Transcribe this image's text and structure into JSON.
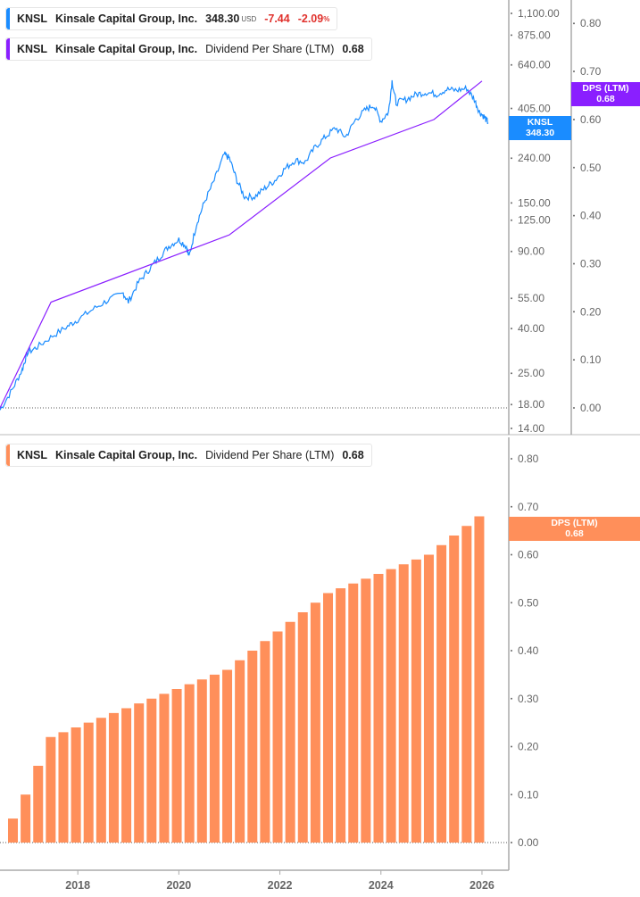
{
  "legend_price": {
    "ticker": "KNSL",
    "company": "Kinsale Capital Group, Inc.",
    "price": "348.30",
    "currency": "USD",
    "change": "-7.44",
    "change_pct": "-2.09",
    "pct_sign": "%"
  },
  "legend_dps_top": {
    "ticker": "KNSL",
    "company": "Kinsale Capital Group, Inc.",
    "metric": "Dividend Per Share (LTM)",
    "value": "0.68"
  },
  "legend_dps_bottom": {
    "ticker": "KNSL",
    "company": "Kinsale Capital Group, Inc.",
    "metric": "Dividend Per Share (LTM)",
    "value": "0.68"
  },
  "tags": {
    "price_name": "KNSL",
    "price_value": "348.30",
    "dps_name": "DPS (LTM)",
    "dps_value": "0.68",
    "bar_name": "DPS (LTM)",
    "bar_value": "0.68"
  },
  "colors": {
    "price": "#1a8cff",
    "dps_line": "#8a1fff",
    "bars": "#ff8f5a",
    "neg": "#e0322d"
  },
  "chart_data": [
    {
      "type": "line",
      "scale": "log",
      "yticks": [
        "1,100.00",
        "875.00",
        "640.00",
        "405.00",
        "240.00",
        "150.00",
        "125.00",
        "90.00",
        "55.00",
        "40.00",
        "25.00",
        "18.00",
        "14.00"
      ],
      "ytick_values": [
        1100,
        875,
        640,
        405,
        240,
        150,
        125,
        90,
        55,
        40,
        25,
        18,
        14
      ],
      "y2ticks": [
        "0.80",
        "0.70",
        "0.60",
        "0.50",
        "0.40",
        "0.30",
        "0.20",
        "0.10",
        "0.00"
      ],
      "y2tick_values": [
        0.8,
        0.7,
        0.6,
        0.5,
        0.4,
        0.3,
        0.2,
        0.1,
        0
      ],
      "series": [
        {
          "name": "KNSL",
          "axis": "left",
          "x": [
            2016.46,
            2016.7,
            2016.9,
            2017.0,
            2017.2,
            2017.5,
            2017.8,
            2018.0,
            2018.3,
            2018.6,
            2018.9,
            2019.0,
            2019.2,
            2019.4,
            2019.6,
            2019.8,
            2020.0,
            2020.15,
            2020.2,
            2020.35,
            2020.5,
            2020.7,
            2020.9,
            2021.0,
            2021.15,
            2021.3,
            2021.5,
            2021.7,
            2021.9,
            2022.1,
            2022.3,
            2022.5,
            2022.7,
            2022.9,
            2023.1,
            2023.3,
            2023.5,
            2023.7,
            2023.85,
            2024.0,
            2024.15,
            2024.22,
            2024.3,
            2024.5,
            2024.7,
            2024.9,
            2025.1,
            2025.3,
            2025.5,
            2025.7,
            2025.85,
            2025.95,
            2026.05,
            2026.12
          ],
          "y": [
            17,
            21,
            26,
            31,
            33,
            37,
            41,
            44,
            49,
            54,
            58,
            53,
            65,
            74,
            84,
            95,
            102,
            95,
            85,
            120,
            150,
            190,
            250,
            240,
            190,
            160,
            160,
            175,
            190,
            215,
            235,
            230,
            270,
            300,
            330,
            300,
            360,
            400,
            420,
            355,
            390,
            540,
            430,
            445,
            470,
            480,
            470,
            495,
            490,
            500,
            445,
            390,
            370,
            348.3
          ]
        },
        {
          "name": "DPS (LTM)",
          "axis": "right",
          "x": [
            2016.46,
            2017.47,
            2021.0,
            2023.0,
            2025.05,
            2026.0
          ],
          "y": [
            0,
            0.22,
            0.36,
            0.52,
            0.6,
            0.68
          ]
        }
      ]
    },
    {
      "type": "bar",
      "yticks": [
        "0.80",
        "0.70",
        "0.60",
        "0.50",
        "0.40",
        "0.30",
        "0.20",
        "0.10",
        "0.00"
      ],
      "ytick_values": [
        0.8,
        0.7,
        0.6,
        0.5,
        0.4,
        0.3,
        0.2,
        0.1,
        0
      ],
      "xticks": [
        "2018",
        "2020",
        "2022",
        "2024",
        "2026"
      ],
      "series": [
        {
          "name": "DPS (LTM)",
          "values": [
            0.05,
            0.1,
            0.16,
            0.22,
            0.23,
            0.24,
            0.25,
            0.26,
            0.27,
            0.28,
            0.29,
            0.3,
            0.31,
            0.32,
            0.33,
            0.34,
            0.35,
            0.36,
            0.38,
            0.4,
            0.42,
            0.44,
            0.46,
            0.48,
            0.5,
            0.52,
            0.53,
            0.54,
            0.55,
            0.56,
            0.57,
            0.58,
            0.59,
            0.6,
            0.62,
            0.64,
            0.66,
            0.68
          ]
        }
      ],
      "ylim": [
        0,
        0.8
      ]
    }
  ]
}
